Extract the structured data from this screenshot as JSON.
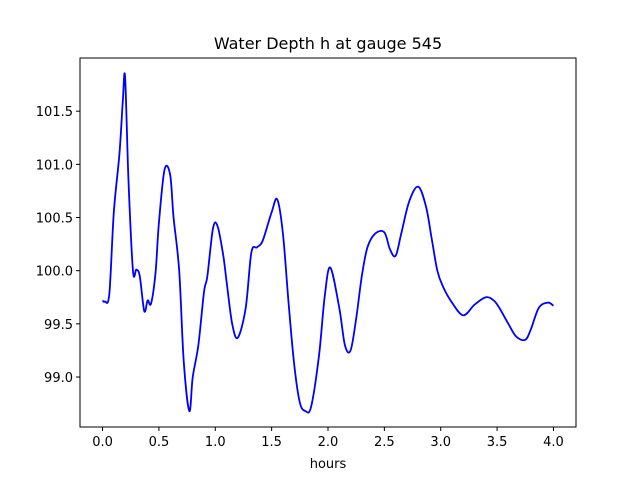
{
  "chart_data": {
    "type": "line",
    "title": "Water Depth h at gauge 545",
    "xlabel": "hours",
    "ylabel": "",
    "xlim": [
      -0.2,
      4.2
    ],
    "ylim": [
      98.53,
      102.0
    ],
    "xticks": [
      0.0,
      0.5,
      1.0,
      1.5,
      2.0,
      2.5,
      3.0,
      3.5,
      4.0
    ],
    "xtick_labels": [
      "0.0",
      "0.5",
      "1.0",
      "1.5",
      "2.0",
      "2.5",
      "3.0",
      "3.5",
      "4.0"
    ],
    "yticks": [
      99.0,
      99.5,
      100.0,
      100.5,
      101.0,
      101.5
    ],
    "ytick_labels": [
      "99.0",
      "99.5",
      "100.0",
      "100.5",
      "101.0",
      "101.5"
    ],
    "grid": false,
    "series": [
      {
        "color": "#0000ff",
        "x": [
          0.0,
          0.02,
          0.06,
          0.1,
          0.15,
          0.18,
          0.2,
          0.23,
          0.27,
          0.3,
          0.33,
          0.37,
          0.4,
          0.43,
          0.47,
          0.5,
          0.55,
          0.6,
          0.63,
          0.68,
          0.72,
          0.77,
          0.8,
          0.85,
          0.9,
          0.93,
          0.98,
          1.02,
          1.07,
          1.1,
          1.15,
          1.2,
          1.27,
          1.32,
          1.37,
          1.42,
          1.5,
          1.55,
          1.6,
          1.65,
          1.7,
          1.75,
          1.8,
          1.85,
          1.92,
          1.97,
          2.02,
          2.1,
          2.15,
          2.2,
          2.25,
          2.3,
          2.35,
          2.42,
          2.5,
          2.55,
          2.6,
          2.65,
          2.72,
          2.8,
          2.87,
          2.92,
          2.97,
          3.02,
          3.1,
          3.2,
          3.3,
          3.4,
          3.47,
          3.52,
          3.6,
          3.67,
          3.75,
          3.8,
          3.87,
          3.95,
          4.0
        ],
        "y": [
          99.72,
          99.71,
          99.78,
          100.55,
          101.1,
          101.6,
          101.82,
          100.85,
          100.0,
          100.01,
          99.95,
          99.62,
          99.72,
          99.69,
          99.98,
          100.45,
          100.95,
          100.9,
          100.5,
          100.0,
          99.15,
          98.68,
          99.0,
          99.3,
          99.8,
          99.95,
          100.4,
          100.42,
          100.15,
          99.9,
          99.5,
          99.37,
          99.65,
          100.17,
          100.22,
          100.28,
          100.55,
          100.67,
          100.35,
          99.7,
          99.12,
          98.76,
          98.68,
          98.72,
          99.2,
          99.75,
          100.03,
          99.65,
          99.3,
          99.25,
          99.55,
          99.95,
          100.22,
          100.35,
          100.36,
          100.2,
          100.14,
          100.35,
          100.65,
          100.79,
          100.6,
          100.3,
          100.0,
          99.85,
          99.7,
          99.58,
          99.68,
          99.75,
          99.72,
          99.65,
          99.5,
          99.38,
          99.35,
          99.45,
          99.65,
          99.7,
          99.67
        ]
      }
    ]
  }
}
